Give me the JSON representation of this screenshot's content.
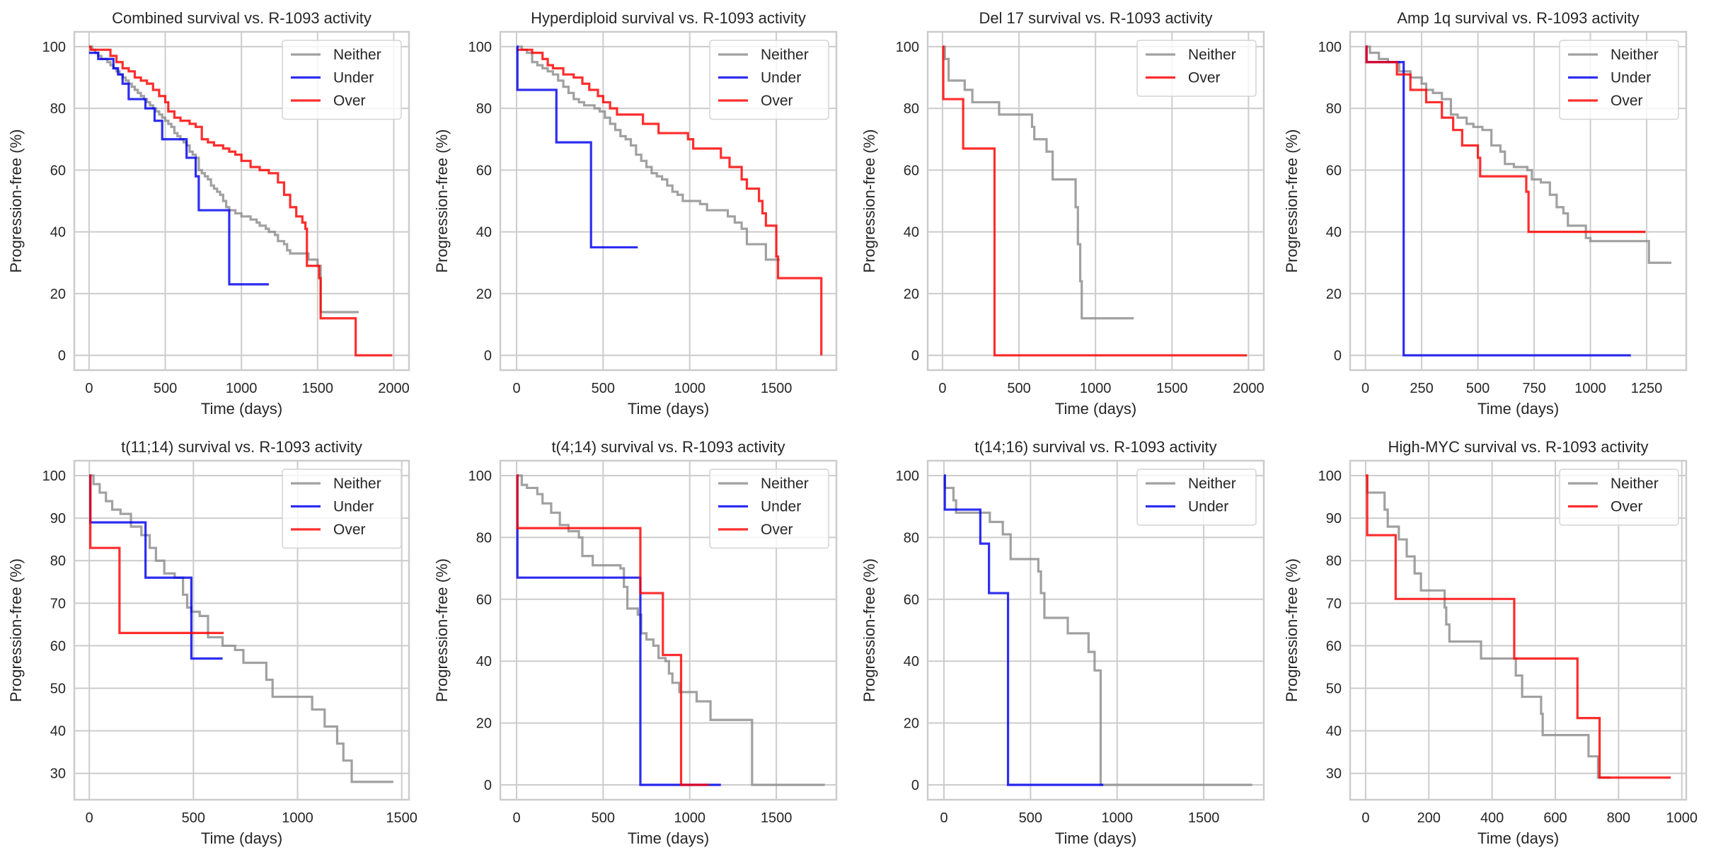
{
  "figure": {
    "colors": {
      "Neither": "#8c8c8c",
      "Under": "#0000ee",
      "Over": "#ff0000"
    }
  },
  "chart_data": [
    {
      "type": "line",
      "title": "Combined survival vs. R-1093 activity",
      "xlabel": "Time (days)",
      "ylabel": "Progression-free (%)",
      "xlim": [
        -97,
        2100
      ],
      "ylim": [
        -4.8,
        104.8
      ],
      "xticks": [
        0,
        500,
        1000,
        1500,
        2000
      ],
      "yticks": [
        0,
        20,
        40,
        60,
        80,
        100
      ],
      "grid": true,
      "legend": "top-right",
      "series": [
        {
          "name": "Neither",
          "x": [
            0,
            20,
            40,
            60,
            80,
            100,
            120,
            140,
            160,
            180,
            200,
            220,
            240,
            260,
            280,
            300,
            320,
            340,
            360,
            380,
            400,
            420,
            440,
            460,
            480,
            500,
            520,
            540,
            560,
            580,
            600,
            620,
            640,
            660,
            680,
            700,
            720,
            740,
            760,
            780,
            800,
            820,
            840,
            860,
            880,
            900,
            920,
            940,
            960,
            980,
            1000,
            1020,
            1040,
            1060,
            1080,
            1100,
            1120,
            1140,
            1160,
            1180,
            1200,
            1220,
            1240,
            1260,
            1280,
            1300,
            1320,
            1340,
            1360,
            1400,
            1440,
            1460,
            1500,
            1510,
            1520,
            1770
          ],
          "y": [
            100,
            99,
            98,
            97,
            96,
            96,
            95,
            94,
            93,
            92,
            91,
            90,
            89,
            88,
            87,
            86,
            85,
            84,
            83,
            82,
            81,
            80,
            79,
            78,
            77,
            76,
            75,
            74,
            72,
            71,
            70,
            69,
            68,
            66,
            65,
            64,
            60,
            59,
            58,
            57,
            55,
            54,
            53,
            52,
            50,
            48,
            47,
            47,
            46,
            46,
            45,
            45,
            45,
            44,
            44,
            43,
            42,
            42,
            41,
            40,
            40,
            39,
            37,
            37,
            36,
            34,
            33,
            33,
            33,
            33,
            31,
            31,
            29,
            29,
            14,
            14
          ]
        },
        {
          "name": "Under",
          "x": [
            0,
            60,
            160,
            190,
            220,
            260,
            370,
            430,
            480,
            640,
            700,
            720,
            920,
            1180
          ],
          "y": [
            98,
            96,
            93,
            91,
            88,
            83,
            80,
            76,
            70,
            64,
            58,
            47,
            23,
            23
          ]
        },
        {
          "name": "Over",
          "x": [
            0,
            10,
            100,
            140,
            180,
            220,
            260,
            300,
            340,
            380,
            420,
            460,
            500,
            520,
            560,
            600,
            660,
            700,
            740,
            780,
            820,
            880,
            920,
            960,
            1000,
            1060,
            1120,
            1180,
            1240,
            1280,
            1320,
            1360,
            1400,
            1420,
            1430,
            1510,
            1520,
            1750,
            1990
          ],
          "y": [
            100,
            99,
            99,
            97,
            95,
            93,
            92,
            90,
            89,
            88,
            86,
            84,
            82,
            79,
            77,
            76,
            75,
            74,
            70,
            69,
            68,
            67,
            66,
            65,
            63,
            61,
            60,
            59,
            56,
            52,
            48,
            45,
            43,
            41,
            29,
            25,
            12,
            0,
            0
          ]
        }
      ]
    },
    {
      "type": "line",
      "title": "Hyperdiploid survival vs. R-1093 activity",
      "xlabel": "Time (days)",
      "ylabel": "Progression-free (%)",
      "xlim": [
        -94,
        1847
      ],
      "ylim": [
        -4.8,
        104.8
      ],
      "xticks": [
        0,
        500,
        1000,
        1500
      ],
      "yticks": [
        0,
        20,
        40,
        60,
        80,
        100
      ],
      "grid": true,
      "legend": "top-right",
      "series": [
        {
          "name": "Neither",
          "x": [
            0,
            30,
            60,
            90,
            120,
            150,
            180,
            210,
            240,
            270,
            300,
            330,
            360,
            390,
            420,
            450,
            480,
            510,
            540,
            570,
            600,
            630,
            660,
            690,
            720,
            750,
            780,
            810,
            840,
            870,
            900,
            930,
            960,
            990,
            1020,
            1060,
            1100,
            1140,
            1180,
            1220,
            1260,
            1300,
            1330,
            1360,
            1400,
            1440,
            1520
          ],
          "y": [
            100,
            99,
            98,
            95,
            94,
            93,
            92,
            91,
            89,
            87,
            85,
            83,
            82,
            81,
            81,
            80,
            79,
            77,
            75,
            73,
            71,
            70,
            68,
            65,
            63,
            61,
            59,
            58,
            57,
            55,
            53,
            52,
            50,
            50,
            50,
            49,
            47,
            47,
            47,
            45,
            43,
            41,
            36,
            36,
            36,
            31,
            31
          ]
        },
        {
          "name": "Over",
          "x": [
            0,
            90,
            150,
            180,
            210,
            270,
            330,
            380,
            420,
            470,
            500,
            540,
            580,
            700,
            730,
            820,
            990,
            1020,
            1180,
            1190,
            1230,
            1300,
            1330,
            1400,
            1420,
            1440,
            1500,
            1510,
            1760
          ],
          "y": [
            99,
            98,
            96,
            94,
            93,
            91,
            90,
            88,
            86,
            84,
            82,
            80,
            78,
            78,
            75,
            72,
            70,
            67,
            64,
            64,
            61,
            57,
            54,
            50,
            46,
            42,
            32,
            25,
            0
          ]
        },
        {
          "name": "Under",
          "x": [
            0,
            5,
            230,
            430,
            700
          ],
          "y": [
            100,
            86,
            69,
            35,
            35
          ]
        }
      ]
    },
    {
      "type": "line",
      "title": "Del 17 survival vs. R-1093 activity",
      "xlabel": "Time (days)",
      "ylabel": "Progression-free (%)",
      "xlim": [
        -97,
        2100
      ],
      "ylim": [
        -4.8,
        104.8
      ],
      "xticks": [
        0,
        500,
        1000,
        1500,
        2000
      ],
      "yticks": [
        0,
        20,
        40,
        60,
        80,
        100
      ],
      "grid": true,
      "legend": "top-right",
      "series": [
        {
          "name": "Neither",
          "x": [
            0,
            15,
            40,
            145,
            195,
            370,
            585,
            600,
            680,
            720,
            870,
            885,
            900,
            910,
            920,
            1250
          ],
          "y": [
            100,
            96,
            89,
            86,
            82,
            78,
            74,
            70,
            66,
            57,
            48,
            36,
            24,
            12,
            12,
            12
          ]
        },
        {
          "name": "Over",
          "x": [
            0,
            5,
            135,
            340,
            1990
          ],
          "y": [
            100,
            83,
            67,
            0,
            0
          ]
        }
      ]
    },
    {
      "type": "line",
      "title": "Amp 1q survival vs. R-1093 activity",
      "xlabel": "Time (days)",
      "ylabel": "Progression-free (%)",
      "xlim": [
        -68,
        1426
      ],
      "ylim": [
        -4.8,
        104.8
      ],
      "xticks": [
        0,
        250,
        500,
        750,
        1000,
        1250
      ],
      "yticks": [
        0,
        20,
        40,
        60,
        80,
        100
      ],
      "grid": true,
      "legend": "top-right",
      "series": [
        {
          "name": "Neither",
          "x": [
            0,
            20,
            60,
            100,
            150,
            200,
            250,
            270,
            300,
            340,
            380,
            410,
            450,
            480,
            520,
            560,
            600,
            620,
            660,
            720,
            740,
            780,
            820,
            850,
            880,
            900,
            980,
            1000,
            1260,
            1360
          ],
          "y": [
            100,
            98,
            96,
            95,
            92,
            90,
            88,
            86,
            85,
            83,
            78,
            77,
            75,
            74,
            73,
            68,
            66,
            62,
            61,
            60,
            57,
            56,
            52,
            48,
            46,
            42,
            38,
            37,
            30,
            30
          ]
        },
        {
          "name": "Under",
          "x": [
            0,
            5,
            170,
            1180
          ],
          "y": [
            100,
            95,
            0,
            0
          ]
        },
        {
          "name": "Over",
          "x": [
            0,
            5,
            140,
            200,
            270,
            340,
            390,
            430,
            500,
            510,
            715,
            725,
            1245
          ],
          "y": [
            100,
            95,
            91,
            86,
            82,
            77,
            73,
            68,
            64,
            58,
            53,
            40,
            40
          ]
        }
      ]
    },
    {
      "type": "line",
      "title": "t(11;14) survival vs. R-1093 activity",
      "xlabel": "Time (days)",
      "ylabel": "Progression-free (%)",
      "xlim": [
        -72,
        1535
      ],
      "ylim": [
        23.8,
        103.5
      ],
      "xticks": [
        0,
        500,
        1000,
        1500
      ],
      "yticks": [
        30,
        40,
        50,
        60,
        70,
        80,
        90,
        100
      ],
      "grid": true,
      "legend": "top-right",
      "series": [
        {
          "name": "Neither",
          "x": [
            0,
            20,
            50,
            80,
            110,
            150,
            200,
            250,
            290,
            320,
            360,
            410,
            450,
            470,
            490,
            530,
            570,
            640,
            700,
            740,
            850,
            880,
            1070,
            1130,
            1190,
            1220,
            1260,
            1460
          ],
          "y": [
            100,
            98,
            96,
            94,
            92,
            91,
            88,
            86,
            83,
            80,
            77,
            76,
            72,
            69,
            68,
            67,
            62,
            60,
            59,
            56,
            52,
            48,
            45,
            41,
            37,
            33,
            28,
            28
          ]
        },
        {
          "name": "Under",
          "x": [
            0,
            5,
            270,
            490,
            640
          ],
          "y": [
            100,
            89,
            76,
            57,
            57
          ]
        },
        {
          "name": "Over",
          "x": [
            0,
            5,
            145,
            645
          ],
          "y": [
            100,
            83,
            63,
            63
          ]
        }
      ]
    },
    {
      "type": "line",
      "title": "t(4;14) survival vs. R-1093 activity",
      "xlabel": "Time (days)",
      "ylabel": "Progression-free (%)",
      "xlim": [
        -94,
        1847
      ],
      "ylim": [
        -4.8,
        104.8
      ],
      "xticks": [
        0,
        500,
        1000,
        1500
      ],
      "yticks": [
        0,
        20,
        40,
        60,
        80,
        100
      ],
      "grid": true,
      "legend": "top-right",
      "series": [
        {
          "name": "Neither",
          "x": [
            0,
            30,
            60,
            120,
            150,
            200,
            250,
            300,
            360,
            380,
            440,
            600,
            620,
            640,
            700,
            720,
            750,
            790,
            820,
            860,
            880,
            900,
            940,
            1040,
            1120,
            1360,
            1780
          ],
          "y": [
            100,
            97,
            96,
            94,
            91,
            88,
            84,
            82,
            80,
            74,
            71,
            70,
            64,
            57,
            55,
            49,
            47,
            45,
            41,
            40,
            36,
            33,
            30,
            27,
            21,
            0,
            0
          ]
        },
        {
          "name": "Under",
          "x": [
            0,
            5,
            715,
            1180
          ],
          "y": [
            100,
            67,
            0,
            0
          ]
        },
        {
          "name": "Over",
          "x": [
            0,
            5,
            715,
            845,
            950,
            1110
          ],
          "y": [
            100,
            83,
            62,
            42,
            0,
            0
          ]
        }
      ]
    },
    {
      "type": "line",
      "title": "t(14;16) survival vs. R-1093 activity",
      "xlabel": "Time (days)",
      "ylabel": "Progression-free (%)",
      "xlim": [
        -94,
        1847
      ],
      "ylim": [
        -4.8,
        104.8
      ],
      "xticks": [
        0,
        500,
        1000,
        1500
      ],
      "yticks": [
        0,
        20,
        40,
        60,
        80,
        100
      ],
      "grid": true,
      "legend": "top-right",
      "series": [
        {
          "name": "Neither",
          "x": [
            0,
            5,
            55,
            70,
            265,
            340,
            385,
            545,
            560,
            580,
            715,
            835,
            870,
            905,
            920,
            1780
          ],
          "y": [
            100,
            96,
            92,
            88,
            85,
            81,
            73,
            69,
            62,
            54,
            49,
            43,
            37,
            0,
            0,
            0
          ]
        },
        {
          "name": "Under",
          "x": [
            0,
            5,
            210,
            260,
            370,
            920
          ],
          "y": [
            100,
            89,
            78,
            62,
            0,
            0
          ]
        }
      ]
    },
    {
      "type": "line",
      "title": "High-MYC survival vs. R-1093 activity",
      "xlabel": "Time (days)",
      "ylabel": "Progression-free (%)",
      "xlim": [
        -49,
        1014
      ],
      "ylim": [
        23.8,
        103.5
      ],
      "xticks": [
        0,
        200,
        400,
        600,
        800,
        1000
      ],
      "yticks": [
        30,
        40,
        50,
        60,
        70,
        80,
        90,
        100
      ],
      "grid": true,
      "legend": "top-right",
      "series": [
        {
          "name": "Neither",
          "x": [
            0,
            5,
            60,
            70,
            105,
            130,
            155,
            175,
            250,
            255,
            265,
            365,
            475,
            495,
            555,
            560,
            705,
            735,
            775
          ],
          "y": [
            100,
            96,
            92,
            88,
            85,
            81,
            77,
            73,
            69,
            65,
            61,
            57,
            53,
            48,
            44,
            39,
            34,
            29,
            29
          ]
        },
        {
          "name": "Over",
          "x": [
            0,
            5,
            95,
            470,
            670,
            740,
            965
          ],
          "y": [
            100,
            86,
            71,
            57,
            43,
            29,
            29
          ]
        }
      ]
    }
  ]
}
